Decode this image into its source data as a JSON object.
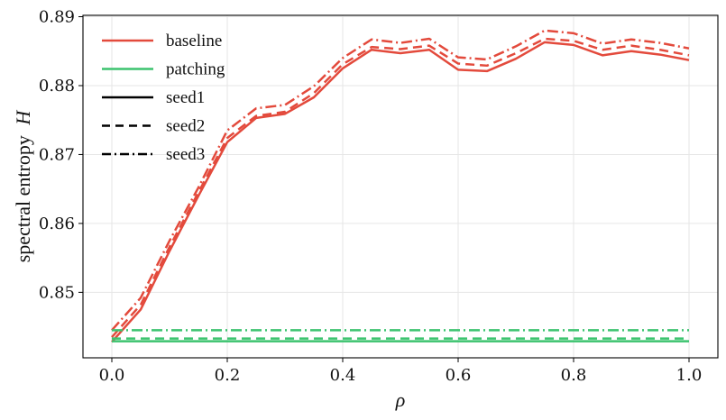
{
  "chart_data": {
    "type": "line",
    "title": "",
    "xlabel": "ρ",
    "ylabel": "spectral entropy",
    "ylabel_symbol": "H",
    "xlim": [
      -0.05,
      1.05
    ],
    "ylim": [
      0.8405,
      0.8902
    ],
    "x": [
      0.0,
      0.05,
      0.1,
      0.15,
      0.2,
      0.25,
      0.3,
      0.35,
      0.4,
      0.45,
      0.5,
      0.55,
      0.6,
      0.65,
      0.7,
      0.75,
      0.8,
      0.85,
      0.9,
      0.95,
      1.0
    ],
    "xticks": [
      0.0,
      0.2,
      0.4,
      0.6,
      0.8,
      1.0
    ],
    "xtick_labels": [
      "0.0",
      "0.2",
      "0.4",
      "0.6",
      "0.8",
      "1.0"
    ],
    "yticks": [
      0.85,
      0.86,
      0.87,
      0.88,
      0.89
    ],
    "ytick_labels": [
      "0.85",
      "0.86",
      "0.87",
      "0.88",
      "0.89"
    ],
    "grid": true,
    "legend_position": "top-left",
    "colors": {
      "baseline": "#e34a3c",
      "patching": "#3cc36f",
      "legend_style": "#000000"
    },
    "legend": [
      {
        "label": "baseline",
        "kind": "color",
        "color": "#e34a3c",
        "dash": "solid"
      },
      {
        "label": "patching",
        "kind": "color",
        "color": "#3cc36f",
        "dash": "solid"
      },
      {
        "label": "seed1",
        "kind": "style",
        "color": "#000000",
        "dash": "solid"
      },
      {
        "label": "seed2",
        "kind": "style",
        "color": "#000000",
        "dash": "dashed"
      },
      {
        "label": "seed3",
        "kind": "style",
        "color": "#000000",
        "dash": "dashdot"
      }
    ],
    "series": [
      {
        "name": "baseline seed1",
        "group": "baseline",
        "dash": "solid",
        "values": [
          0.8428,
          0.8475,
          0.856,
          0.864,
          0.8718,
          0.8753,
          0.8759,
          0.8783,
          0.8825,
          0.8852,
          0.8847,
          0.8852,
          0.8823,
          0.8821,
          0.8839,
          0.8863,
          0.8859,
          0.8844,
          0.885,
          0.8845,
          0.8837
        ]
      },
      {
        "name": "baseline seed2",
        "group": "baseline",
        "dash": "dashed",
        "values": [
          0.8435,
          0.8482,
          0.8566,
          0.8645,
          0.8724,
          0.8756,
          0.8762,
          0.8789,
          0.8831,
          0.8856,
          0.8853,
          0.8858,
          0.8832,
          0.8829,
          0.8847,
          0.8868,
          0.8865,
          0.8852,
          0.8858,
          0.8852,
          0.8844
        ]
      },
      {
        "name": "baseline seed3",
        "group": "baseline",
        "dash": "dashdot",
        "values": [
          0.8445,
          0.8492,
          0.8575,
          0.8652,
          0.8735,
          0.8767,
          0.8772,
          0.8799,
          0.884,
          0.8867,
          0.8862,
          0.8868,
          0.8841,
          0.8838,
          0.8857,
          0.888,
          0.8876,
          0.8861,
          0.8867,
          0.8862,
          0.8854
        ]
      },
      {
        "name": "patching seed1",
        "group": "patching",
        "dash": "solid",
        "values": [
          0.8429,
          0.8429,
          0.8429,
          0.8429,
          0.8429,
          0.8429,
          0.8429,
          0.8429,
          0.8429,
          0.8429,
          0.8429,
          0.8429,
          0.8429,
          0.8429,
          0.8429,
          0.8429,
          0.8429,
          0.8429,
          0.8429,
          0.8429,
          0.8429
        ]
      },
      {
        "name": "patching seed2",
        "group": "patching",
        "dash": "dashed",
        "values": [
          0.8433,
          0.8433,
          0.8433,
          0.8433,
          0.8433,
          0.8433,
          0.8433,
          0.8433,
          0.8433,
          0.8433,
          0.8433,
          0.8433,
          0.8433,
          0.8433,
          0.8433,
          0.8433,
          0.8433,
          0.8433,
          0.8433,
          0.8433,
          0.8433
        ]
      },
      {
        "name": "patching seed3",
        "group": "patching",
        "dash": "dashdot",
        "values": [
          0.8445,
          0.8445,
          0.8445,
          0.8445,
          0.8445,
          0.8445,
          0.8445,
          0.8445,
          0.8445,
          0.8445,
          0.8445,
          0.8445,
          0.8445,
          0.8445,
          0.8445,
          0.8445,
          0.8445,
          0.8445,
          0.8445,
          0.8445,
          0.8445
        ]
      }
    ]
  }
}
